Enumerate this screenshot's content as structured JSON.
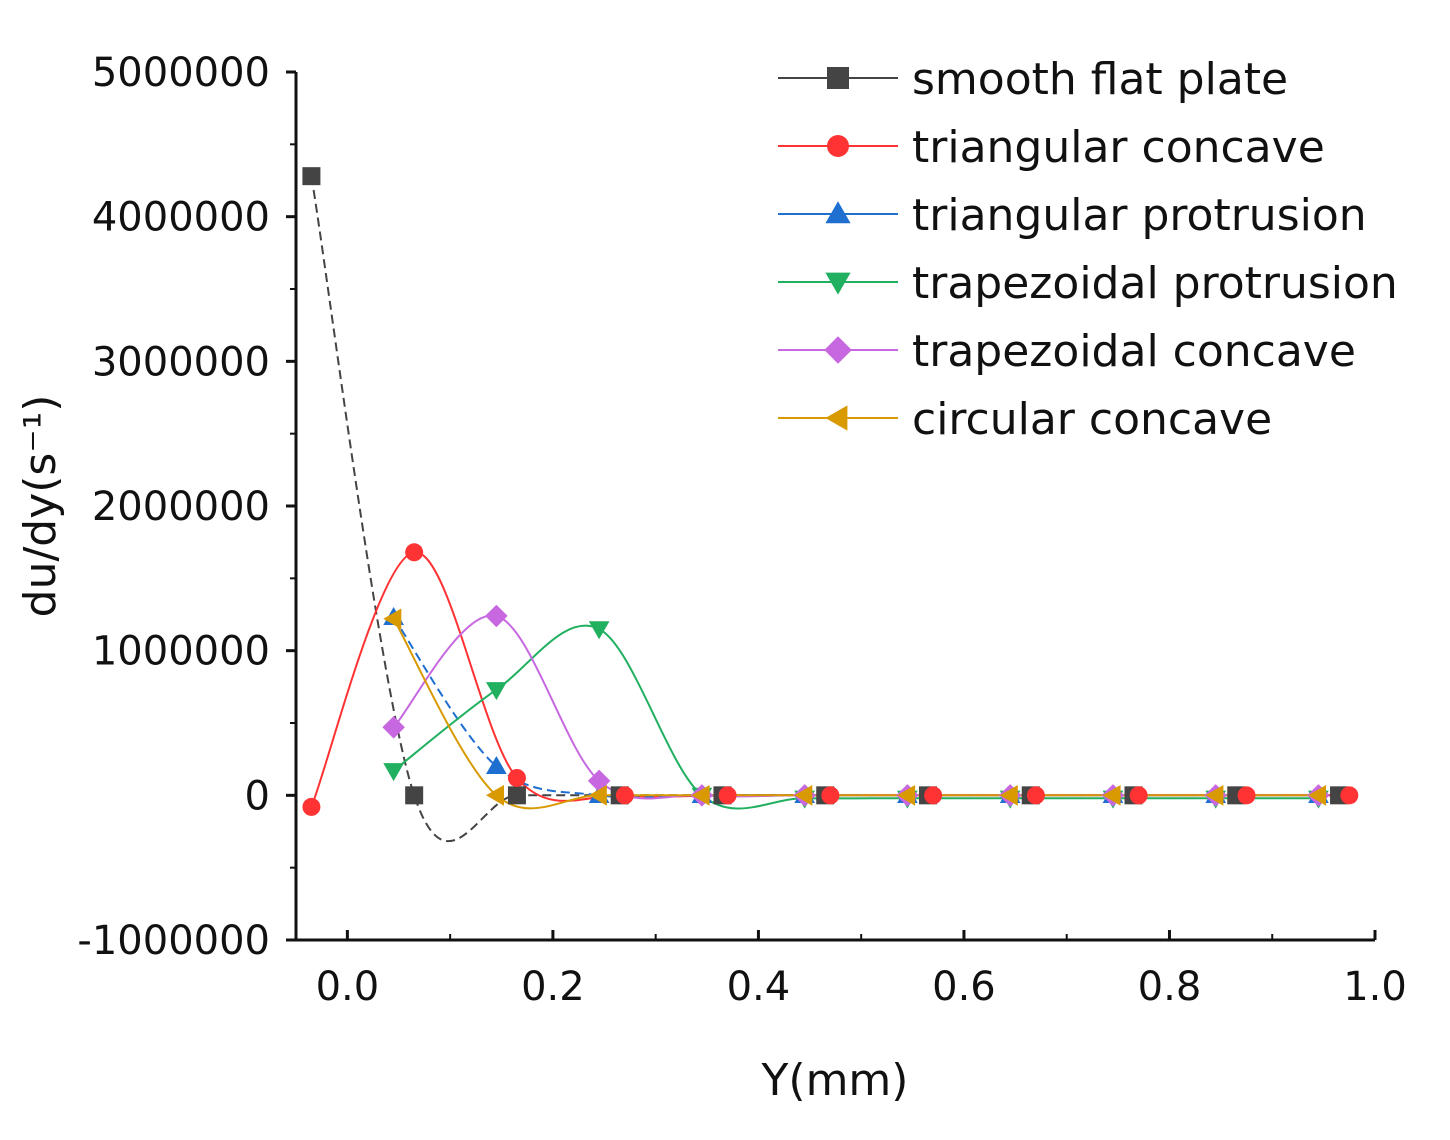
{
  "chart_data": {
    "type": "line",
    "xlabel": "Y(mm)",
    "ylabel": "du/dy(s⁻¹)",
    "xlim": [
      -0.05,
      1.0
    ],
    "ylim": [
      -1000000,
      5000000
    ],
    "x_ticks": [
      0.0,
      0.2,
      0.4,
      0.6,
      0.8,
      1.0
    ],
    "x_tick_labels": [
      "0.0",
      "0.2",
      "0.4",
      "0.6",
      "0.8",
      "1.0"
    ],
    "y_ticks": [
      -1000000,
      0,
      1000000,
      2000000,
      3000000,
      4000000,
      5000000
    ],
    "y_tick_labels": [
      "-1000000",
      "0",
      "1000000",
      "2000000",
      "3000000",
      "4000000",
      "5000000"
    ],
    "legend_position": "top-right",
    "series": [
      {
        "name": "smooth flat  plate",
        "color": "#444444",
        "marker": "square",
        "dashed": true,
        "x": [
          -0.035,
          0.065,
          0.165,
          0.265,
          0.365,
          0.465,
          0.565,
          0.665,
          0.765,
          0.865,
          0.965
        ],
        "y": [
          4280000,
          0,
          0,
          0,
          0,
          0,
          0,
          0,
          0,
          0,
          0
        ]
      },
      {
        "name": "triangular concave",
        "color": "#ff3333",
        "marker": "circle",
        "dashed": false,
        "x": [
          -0.035,
          0.065,
          0.165,
          0.27,
          0.37,
          0.47,
          0.57,
          0.67,
          0.77,
          0.875,
          0.975
        ],
        "y": [
          -80000,
          1680000,
          120000,
          0,
          0,
          0,
          0,
          0,
          0,
          0,
          0
        ]
      },
      {
        "name": "triangular protrusion",
        "color": "#1f6fd1",
        "marker": "triangle-up",
        "dashed": true,
        "x": [
          0.045,
          0.145,
          0.245,
          0.345,
          0.445,
          0.545,
          0.645,
          0.745,
          0.845,
          0.945
        ],
        "y": [
          1230000,
          200000,
          0,
          0,
          0,
          0,
          0,
          0,
          0,
          0
        ]
      },
      {
        "name": "trapezoidal protrusion",
        "color": "#20b060",
        "marker": "triangle-down",
        "dashed": false,
        "x": [
          0.045,
          0.145,
          0.245,
          0.345,
          0.445,
          0.545,
          0.645,
          0.745,
          0.845,
          0.945
        ],
        "y": [
          170000,
          730000,
          1150000,
          0,
          -20000,
          -20000,
          -20000,
          -20000,
          -20000,
          -20000
        ]
      },
      {
        "name": "trapezoidal  concave",
        "color": "#c768e0",
        "marker": "diamond",
        "dashed": false,
        "x": [
          0.045,
          0.145,
          0.245,
          0.345,
          0.445,
          0.545,
          0.645,
          0.745,
          0.845,
          0.945
        ],
        "y": [
          470000,
          1240000,
          100000,
          0,
          0,
          0,
          0,
          0,
          0,
          0
        ]
      },
      {
        "name": "circular concave",
        "color": "#d89a00",
        "marker": "triangle-left",
        "dashed": false,
        "x": [
          0.045,
          0.145,
          0.245,
          0.345,
          0.445,
          0.545,
          0.645,
          0.745,
          0.845,
          0.945
        ],
        "y": [
          1220000,
          0,
          0,
          0,
          0,
          0,
          0,
          0,
          0,
          0
        ]
      }
    ]
  }
}
